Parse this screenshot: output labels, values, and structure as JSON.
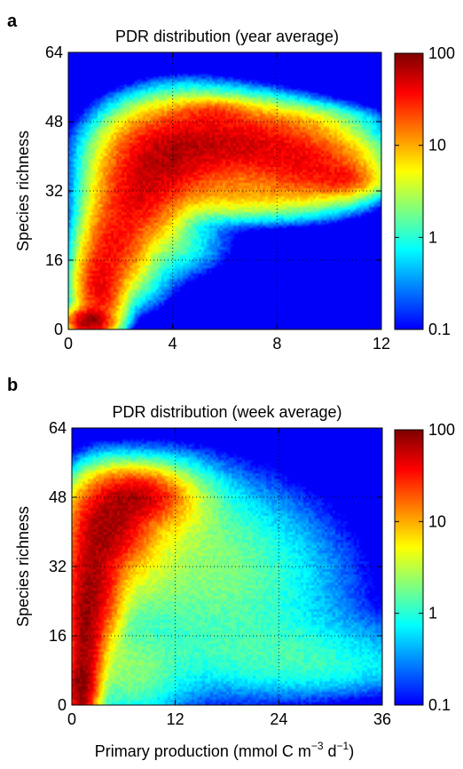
{
  "figure": {
    "xlabel_main": "Primary production (mmol C m",
    "xlabel_sup1": "−3",
    "xlabel_mid": " d",
    "xlabel_sup2": "−1",
    "xlabel_end": ")"
  },
  "chart_data": [
    {
      "panel_label": "a",
      "type": "heatmap",
      "title": "PDR distribution (year average)",
      "ylabel": "Species richness",
      "xlim": [
        0,
        12
      ],
      "ylim": [
        0,
        64
      ],
      "xticks": [
        "0",
        "4",
        "8",
        "12"
      ],
      "yticks": [
        "0",
        "16",
        "32",
        "48",
        "64"
      ],
      "grid": true,
      "colorbar": {
        "scale": "log",
        "range": [
          0.1,
          100
        ],
        "ticks": [
          "100",
          "10",
          "1",
          "0.1"
        ],
        "colormap": "jet"
      },
      "blobs": [
        {
          "x": 0.8,
          "y": 2,
          "sx": 0.4,
          "sy": 1.5,
          "v": 80
        },
        {
          "x": 1.2,
          "y": 10,
          "sx": 0.45,
          "sy": 5,
          "v": 40
        },
        {
          "x": 1.8,
          "y": 20,
          "sx": 0.6,
          "sy": 5,
          "v": 30
        },
        {
          "x": 2.6,
          "y": 30,
          "sx": 0.8,
          "sy": 5,
          "v": 35
        },
        {
          "x": 3.4,
          "y": 38,
          "sx": 1.0,
          "sy": 5,
          "v": 40
        },
        {
          "x": 4.5,
          "y": 42,
          "sx": 1.3,
          "sy": 5,
          "v": 35
        },
        {
          "x": 6.0,
          "y": 44,
          "sx": 1.5,
          "sy": 4,
          "v": 25
        },
        {
          "x": 7.5,
          "y": 42,
          "sx": 1.4,
          "sy": 4,
          "v": 25
        },
        {
          "x": 9.2,
          "y": 38,
          "sx": 1.2,
          "sy": 4,
          "v": 30
        },
        {
          "x": 10.5,
          "y": 35,
          "sx": 0.7,
          "sy": 2,
          "v": 20
        },
        {
          "x": 5.5,
          "y": 50,
          "sx": 0.8,
          "sy": 1.5,
          "v": 15
        },
        {
          "x": 6.5,
          "y": 32,
          "sx": 1.6,
          "sy": 3,
          "v": 8
        },
        {
          "x": 3.5,
          "y": 20,
          "sx": 1.2,
          "sy": 4,
          "v": 1.5
        },
        {
          "x": 2.5,
          "y": 12,
          "sx": 0.8,
          "sy": 4,
          "v": 1
        },
        {
          "x": 8.5,
          "y": 48,
          "sx": 1.5,
          "sy": 2,
          "v": 3
        }
      ]
    },
    {
      "panel_label": "b",
      "type": "heatmap",
      "title": "PDR distribution (week average)",
      "ylabel": "Species richness",
      "xlim": [
        0,
        36
      ],
      "ylim": [
        0,
        64
      ],
      "xticks": [
        "0",
        "12",
        "24",
        "36"
      ],
      "yticks": [
        "0",
        "16",
        "32",
        "48",
        "64"
      ],
      "grid": true,
      "colorbar": {
        "scale": "log",
        "range": [
          0.1,
          100
        ],
        "ticks": [
          "100",
          "10",
          "1",
          "0.1"
        ],
        "colormap": "jet"
      },
      "blobs": [
        {
          "x": 1.0,
          "y": 4,
          "sx": 0.8,
          "sy": 4,
          "v": 80
        },
        {
          "x": 1.5,
          "y": 16,
          "sx": 1.0,
          "sy": 8,
          "v": 70
        },
        {
          "x": 2.5,
          "y": 30,
          "sx": 1.6,
          "sy": 8,
          "v": 60
        },
        {
          "x": 4.5,
          "y": 42,
          "sx": 2.2,
          "sy": 5,
          "v": 60
        },
        {
          "x": 7.5,
          "y": 48,
          "sx": 2.5,
          "sy": 3,
          "v": 50
        },
        {
          "x": 10,
          "y": 46,
          "sx": 3.5,
          "sy": 5,
          "v": 6
        },
        {
          "x": 6,
          "y": 36,
          "sx": 3.5,
          "sy": 8,
          "v": 5
        },
        {
          "x": 14,
          "y": 34,
          "sx": 6,
          "sy": 10,
          "v": 1.5
        },
        {
          "x": 20,
          "y": 26,
          "sx": 7,
          "sy": 12,
          "v": 0.9
        },
        {
          "x": 24,
          "y": 12,
          "sx": 10,
          "sy": 5,
          "v": 0.8
        },
        {
          "x": 30,
          "y": 8,
          "sx": 6,
          "sy": 3,
          "v": 0.4
        },
        {
          "x": 6,
          "y": 8,
          "sx": 4,
          "sy": 6,
          "v": 2
        }
      ]
    }
  ]
}
